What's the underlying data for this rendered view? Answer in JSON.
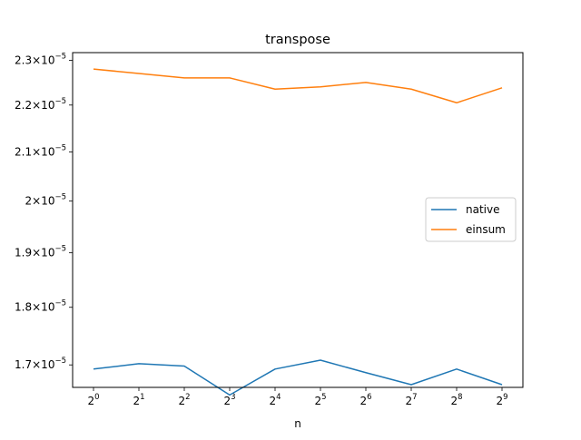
{
  "chart_data": {
    "type": "line",
    "title": "transpose",
    "xlabel": "n",
    "ylabel": "",
    "x_scale": "log2",
    "y_scale": "log",
    "x": [
      1,
      2,
      4,
      8,
      16,
      32,
      64,
      128,
      256,
      512
    ],
    "x_tick_labels": [
      {
        "base": "2",
        "exp": "0"
      },
      {
        "base": "2",
        "exp": "1"
      },
      {
        "base": "2",
        "exp": "2"
      },
      {
        "base": "2",
        "exp": "3"
      },
      {
        "base": "2",
        "exp": "4"
      },
      {
        "base": "2",
        "exp": "5"
      },
      {
        "base": "2",
        "exp": "6"
      },
      {
        "base": "2",
        "exp": "7"
      },
      {
        "base": "2",
        "exp": "8"
      },
      {
        "base": "2",
        "exp": "9"
      }
    ],
    "y_ticks": [
      {
        "value": 1.7e-05,
        "mant": "1.7",
        "base": "10",
        "exp": "−5"
      },
      {
        "value": 1.8e-05,
        "mant": "1.8",
        "base": "10",
        "exp": "−5"
      },
      {
        "value": 1.9e-05,
        "mant": "1.9",
        "base": "10",
        "exp": "−5"
      },
      {
        "value": 2e-05,
        "mant": "2",
        "base": "10",
        "exp": "−5"
      },
      {
        "value": 2.1e-05,
        "mant": "2.1",
        "base": "10",
        "exp": "−5"
      },
      {
        "value": 2.2e-05,
        "mant": "2.2",
        "base": "10",
        "exp": "−5"
      },
      {
        "value": 2.3e-05,
        "mant": "2.3",
        "base": "10",
        "exp": "−5"
      }
    ],
    "ylim": [
      1.6625e-05,
      2.3175e-05
    ],
    "series": [
      {
        "name": "native",
        "color": "#1f77b4",
        "values": [
          1.693e-05,
          1.702e-05,
          1.698e-05,
          1.65e-05,
          1.693e-05,
          1.708e-05,
          1.687e-05,
          1.667e-05,
          1.693e-05,
          1.667e-05
        ]
      },
      {
        "name": "einsum",
        "color": "#ff7f0e",
        "values": [
          2.28e-05,
          2.27e-05,
          2.26e-05,
          2.26e-05,
          2.235e-05,
          2.24e-05,
          2.25e-05,
          2.235e-05,
          2.205e-05,
          2.238e-05
        ]
      }
    ],
    "legend": {
      "position": "center-right"
    },
    "grid": false
  }
}
